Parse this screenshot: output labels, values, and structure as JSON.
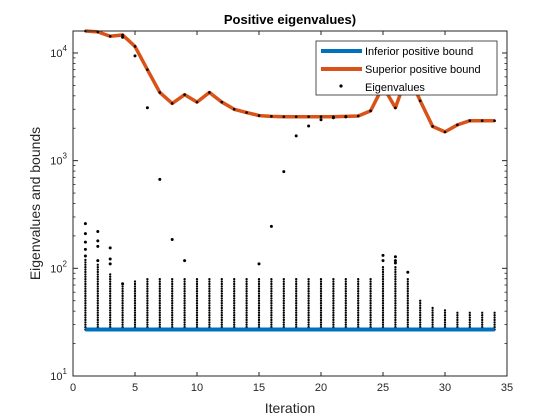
{
  "chart_data": {
    "type": "scatter",
    "title": "Positive eigenvalues)",
    "xlabel": "Iteration",
    "ylabel": "Eigenvalues and bounds",
    "xlim": [
      0,
      35
    ],
    "ylim": [
      10,
      16000
    ],
    "yscale": "log",
    "grid": false,
    "legend_position": "top-right",
    "x_ticks": [
      0,
      5,
      10,
      15,
      20,
      25,
      30,
      35
    ],
    "y_ticks": [
      {
        "value": 10,
        "base": "10",
        "exp": "1"
      },
      {
        "value": 100,
        "base": "10",
        "exp": "2"
      },
      {
        "value": 1000,
        "base": "10",
        "exp": "3"
      },
      {
        "value": 10000,
        "base": "10",
        "exp": "4"
      }
    ],
    "series": [
      {
        "name": "Inferior positive bound",
        "kind": "line",
        "color": "#0072BD",
        "x": [
          1,
          34
        ],
        "y": [
          27,
          27
        ]
      },
      {
        "name": "Superior positive bound",
        "kind": "line",
        "color": "#D95319",
        "x": [
          1,
          2,
          3,
          4,
          5,
          6,
          7,
          8,
          9,
          10,
          11,
          12,
          13,
          14,
          15,
          16,
          17,
          18,
          19,
          20,
          21,
          22,
          23,
          24,
          25,
          26,
          27,
          28,
          29,
          30,
          31,
          32,
          33,
          34
        ],
        "y": [
          16000,
          15700,
          14300,
          14700,
          11500,
          7000,
          4300,
          3400,
          4100,
          3500,
          4300,
          3500,
          3000,
          2800,
          2620,
          2580,
          2560,
          2560,
          2560,
          2560,
          2560,
          2580,
          2600,
          2900,
          4900,
          3100,
          6500,
          3600,
          2080,
          1850,
          2150,
          2350,
          2350,
          2350
        ]
      },
      {
        "name": "Eigenvalues",
        "kind": "points",
        "color": "#000000",
        "x": [
          1,
          1,
          1,
          1,
          1,
          2,
          2,
          2,
          2,
          3,
          3,
          3,
          4,
          4,
          5,
          6,
          7,
          8,
          9,
          15,
          16,
          17,
          18,
          19,
          20,
          21,
          22,
          25,
          25,
          26,
          26,
          26,
          27
        ],
        "y": [
          260,
          210,
          175,
          150,
          130,
          220,
          180,
          160,
          118,
          155,
          122,
          110,
          14000,
          72,
          9400,
          3100,
          670,
          185,
          118,
          110,
          245,
          790,
          1700,
          2100,
          2400,
          2500,
          2550,
          132,
          118,
          128,
          118,
          112,
          92
        ]
      }
    ],
    "eigenvalue_bands": [
      {
        "x": 1,
        "min": 27,
        "max": 120
      },
      {
        "x": 2,
        "min": 27,
        "max": 110
      },
      {
        "x": 3,
        "min": 27,
        "max": 92
      },
      {
        "x": 4,
        "min": 27,
        "max": 75
      },
      {
        "x": 5,
        "min": 27,
        "max": 78
      },
      {
        "x": 6,
        "min": 27,
        "max": 80
      },
      {
        "x": 7,
        "min": 27,
        "max": 81
      },
      {
        "x": 8,
        "min": 27,
        "max": 81
      },
      {
        "x": 9,
        "min": 27,
        "max": 81
      },
      {
        "x": 10,
        "min": 27,
        "max": 81
      },
      {
        "x": 11,
        "min": 27,
        "max": 81
      },
      {
        "x": 12,
        "min": 27,
        "max": 81
      },
      {
        "x": 13,
        "min": 27,
        "max": 81
      },
      {
        "x": 14,
        "min": 27,
        "max": 81
      },
      {
        "x": 15,
        "min": 27,
        "max": 81
      },
      {
        "x": 16,
        "min": 27,
        "max": 81
      },
      {
        "x": 17,
        "min": 27,
        "max": 81
      },
      {
        "x": 18,
        "min": 27,
        "max": 81
      },
      {
        "x": 19,
        "min": 27,
        "max": 81
      },
      {
        "x": 20,
        "min": 27,
        "max": 81
      },
      {
        "x": 21,
        "min": 27,
        "max": 81
      },
      {
        "x": 22,
        "min": 27,
        "max": 81
      },
      {
        "x": 23,
        "min": 27,
        "max": 81
      },
      {
        "x": 24,
        "min": 27,
        "max": 82
      },
      {
        "x": 25,
        "min": 27,
        "max": 105
      },
      {
        "x": 26,
        "min": 27,
        "max": 105
      },
      {
        "x": 27,
        "min": 27,
        "max": 80
      },
      {
        "x": 28,
        "min": 27,
        "max": 50
      },
      {
        "x": 29,
        "min": 27,
        "max": 44
      },
      {
        "x": 30,
        "min": 27,
        "max": 42
      },
      {
        "x": 31,
        "min": 27,
        "max": 40
      },
      {
        "x": 32,
        "min": 27,
        "max": 40
      },
      {
        "x": 33,
        "min": 27,
        "max": 39
      },
      {
        "x": 34,
        "min": 27,
        "max": 39
      }
    ]
  }
}
